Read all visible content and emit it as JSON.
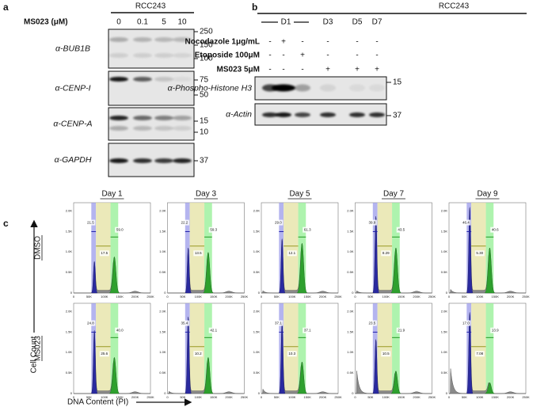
{
  "panel_a": {
    "label": "a",
    "cell_line": "RCC243",
    "treatment": "MS023 (μM)",
    "lanes": [
      "0",
      "0.1",
      "5",
      "10"
    ],
    "blots": [
      "α-BUB1B",
      "α-CENP-I",
      "α-CENP-A",
      "α-GAPDH"
    ],
    "markers": [
      "250",
      "150",
      "100",
      "75",
      "50",
      "15",
      "10",
      "37"
    ]
  },
  "panel_b": {
    "label": "b",
    "cell_line": "RCC243",
    "days": [
      "D1",
      "D3",
      "D5",
      "D7"
    ],
    "treatments": [
      {
        "name": "Nocodazole 1μg/mL",
        "signs": [
          "-",
          "+",
          "-",
          "-",
          "-",
          "-"
        ]
      },
      {
        "name": "Etoposide 100μM",
        "signs": [
          "-",
          "-",
          "+",
          "-",
          "-",
          "-"
        ]
      },
      {
        "name": "MS023 5μM",
        "signs": [
          "-",
          "-",
          "-",
          "+",
          "+",
          "+"
        ]
      }
    ],
    "blots": [
      "α-Phospho-Histone H3",
      "α-Actin"
    ],
    "markers": [
      "15",
      "37"
    ]
  },
  "panel_c": {
    "label": "c",
    "days": [
      "Day 1",
      "Day 3",
      "Day 5",
      "Day 7",
      "Day 9"
    ],
    "conditions": [
      {
        "name": "DMSO",
        "gates": [
          [
            "21.5",
            "17.5",
            "59.0"
          ],
          [
            "22.2",
            "13.5",
            "59.3"
          ],
          [
            "29.0",
            "12.1",
            "61.3"
          ],
          [
            "39.9",
            "8.29",
            "43.5"
          ],
          [
            "46.4",
            "5.30",
            "40.6"
          ]
        ]
      },
      {
        "name": "MS023",
        "gates": [
          [
            "24.8",
            "25.6",
            "40.0"
          ],
          [
            "35.4",
            "10.2",
            "42.1"
          ],
          [
            "37.1",
            "10.3",
            "37.1"
          ],
          [
            "23.5",
            "10.5",
            "21.9"
          ],
          [
            "17.0",
            "7.08",
            "13.9"
          ]
        ]
      }
    ],
    "y_axis": "Cell Count",
    "x_axis": "DNA Content (PI)",
    "xticks": [
      "0",
      "50K",
      "100K",
      "150K",
      "200K",
      "250K"
    ],
    "yticks": [
      "0",
      "0.5K",
      "1.0K",
      "1.5K",
      "2.0K"
    ]
  }
}
